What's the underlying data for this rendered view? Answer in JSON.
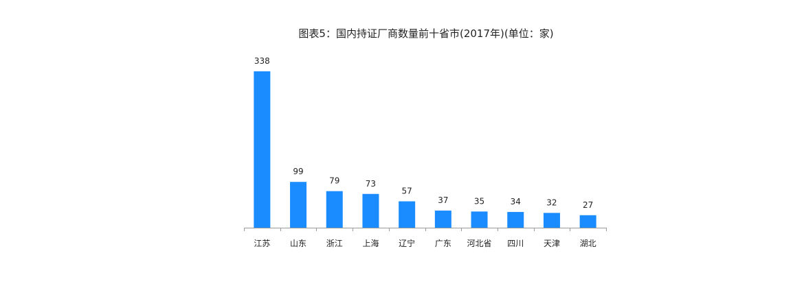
{
  "chart_data": {
    "type": "bar",
    "title": "图表5：国内持证厂商数量前十省市(2017年)(单位：家)",
    "categories": [
      "江苏",
      "山东",
      "浙江",
      "上海",
      "辽宁",
      "广东",
      "河北省",
      "四川",
      "天津",
      "湖北"
    ],
    "values": [
      338,
      99,
      79,
      73,
      57,
      37,
      35,
      34,
      32,
      27
    ],
    "data_labels": [
      "338",
      "99",
      "79",
      "73",
      "57",
      "37",
      "35",
      "34",
      "32",
      "27"
    ],
    "xlabel": "",
    "ylabel": "",
    "ylim": [
      0,
      340
    ],
    "grid": false,
    "legend": "none",
    "bar_color": "#1a8cff"
  }
}
